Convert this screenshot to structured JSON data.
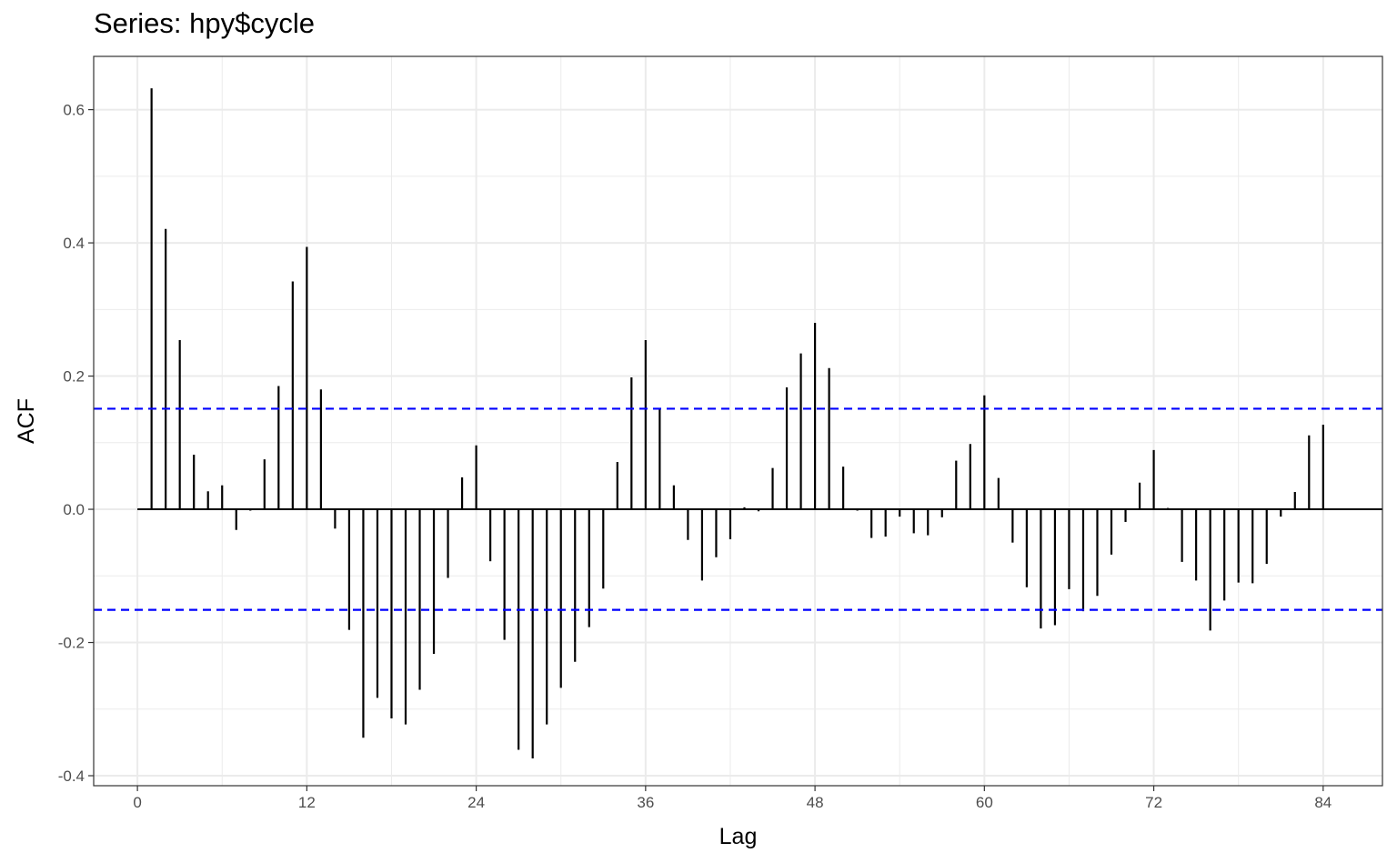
{
  "chart_data": {
    "type": "bar",
    "title": "Series: hpy$cycle",
    "xlabel": "Lag",
    "ylabel": "ACF",
    "xlim": [
      -3.1,
      88.2
    ],
    "ylim": [
      -0.415,
      0.68
    ],
    "x_ticks": [
      0,
      12,
      24,
      36,
      48,
      60,
      72,
      84
    ],
    "x_tick_labels": [
      "0",
      "12",
      "24",
      "36",
      "48",
      "60",
      "72",
      "84"
    ],
    "y_ticks": [
      -0.4,
      -0.2,
      0.0,
      0.2,
      0.4,
      0.6
    ],
    "y_tick_labels": [
      "-0.4",
      "-0.2",
      "0.0",
      "0.2",
      "0.4",
      "0.6"
    ],
    "grid": true,
    "confidence_bound": 0.151,
    "lags": [
      1,
      2,
      3,
      4,
      5,
      6,
      7,
      8,
      9,
      10,
      11,
      12,
      13,
      14,
      15,
      16,
      17,
      18,
      19,
      20,
      21,
      22,
      23,
      24,
      25,
      26,
      27,
      28,
      29,
      30,
      31,
      32,
      33,
      34,
      35,
      36,
      37,
      38,
      39,
      40,
      41,
      42,
      43,
      44,
      45,
      46,
      47,
      48,
      49,
      50,
      51,
      52,
      53,
      54,
      55,
      56,
      57,
      58,
      59,
      60,
      61,
      62,
      63,
      64,
      65,
      66,
      67,
      68,
      69,
      70,
      71,
      72,
      73,
      74,
      75,
      76,
      77,
      78,
      79,
      80,
      81,
      82,
      83,
      84
    ],
    "values": [
      0.632,
      0.421,
      0.254,
      0.082,
      0.027,
      0.036,
      -0.031,
      -0.002,
      0.075,
      0.185,
      0.342,
      0.394,
      0.18,
      -0.029,
      -0.181,
      -0.343,
      -0.283,
      -0.314,
      -0.323,
      -0.271,
      -0.217,
      -0.103,
      0.048,
      0.096,
      -0.078,
      -0.196,
      -0.361,
      -0.374,
      -0.323,
      -0.268,
      -0.229,
      -0.177,
      -0.119,
      0.071,
      0.198,
      0.254,
      0.152,
      0.036,
      -0.046,
      -0.107,
      -0.072,
      -0.045,
      0.003,
      -0.003,
      0.062,
      0.183,
      0.234,
      0.28,
      0.212,
      0.064,
      -0.002,
      -0.043,
      -0.041,
      -0.011,
      -0.036,
      -0.039,
      -0.012,
      0.073,
      0.098,
      0.171,
      0.047,
      -0.05,
      -0.117,
      -0.179,
      -0.174,
      -0.12,
      -0.153,
      -0.13,
      -0.068,
      -0.019,
      0.04,
      0.089,
      0.002,
      -0.079,
      -0.107,
      -0.182,
      -0.137,
      -0.11,
      -0.111,
      -0.082,
      -0.011,
      0.026,
      0.111,
      0.127
    ],
    "colors": {
      "bars": "#000000",
      "confidence_line": "#0000ff",
      "zero_line": "#000000",
      "grid": "#ebebeb",
      "panel_border": "#333333"
    }
  }
}
